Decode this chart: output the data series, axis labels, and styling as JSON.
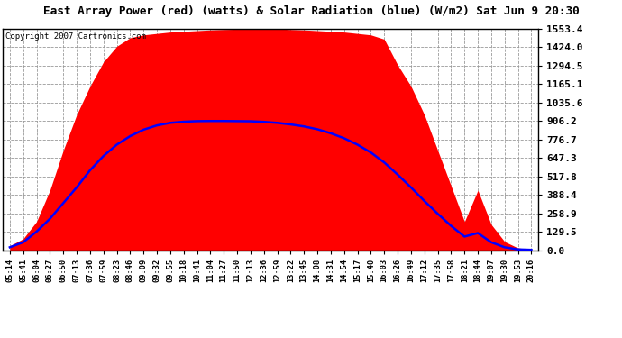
{
  "title": "East Array Power (red) (watts) & Solar Radiation (blue) (W/m2) Sat Jun 9 20:30",
  "copyright": "Copyright 2007 Cartronics.com",
  "x_labels": [
    "05:14",
    "05:41",
    "06:04",
    "06:27",
    "06:50",
    "07:13",
    "07:36",
    "07:59",
    "08:23",
    "08:46",
    "09:09",
    "09:32",
    "09:55",
    "10:18",
    "10:41",
    "11:04",
    "11:27",
    "11:50",
    "12:13",
    "12:36",
    "12:59",
    "13:22",
    "13:45",
    "14:08",
    "14:31",
    "14:54",
    "15:17",
    "15:40",
    "16:03",
    "16:26",
    "16:49",
    "17:12",
    "17:35",
    "17:58",
    "18:21",
    "18:44",
    "19:07",
    "19:30",
    "19:53",
    "20:16"
  ],
  "ymax": 1553.4,
  "yticks": [
    0.0,
    129.5,
    258.9,
    388.4,
    517.8,
    647.3,
    776.7,
    906.2,
    1035.6,
    1165.1,
    1294.5,
    1424.0,
    1553.4
  ],
  "background_color": "#ffffff",
  "fill_color": "#ff0000",
  "line_color": "#0000ff",
  "grid_color": "#999999",
  "power_values": [
    30,
    80,
    200,
    420,
    700,
    950,
    1150,
    1320,
    1430,
    1490,
    1510,
    1520,
    1530,
    1535,
    1540,
    1545,
    1548,
    1550,
    1552,
    1553,
    1552,
    1548,
    1545,
    1540,
    1535,
    1530,
    1520,
    1510,
    1480,
    1300,
    1150,
    950,
    700,
    450,
    200,
    420,
    180,
    60,
    15,
    5
  ],
  "solar_values": [
    20,
    55,
    130,
    220,
    330,
    440,
    560,
    660,
    740,
    800,
    845,
    875,
    893,
    901,
    905,
    906,
    906,
    905,
    904,
    900,
    893,
    882,
    868,
    848,
    820,
    785,
    740,
    685,
    615,
    530,
    440,
    345,
    255,
    170,
    95,
    120,
    55,
    20,
    5,
    2
  ]
}
